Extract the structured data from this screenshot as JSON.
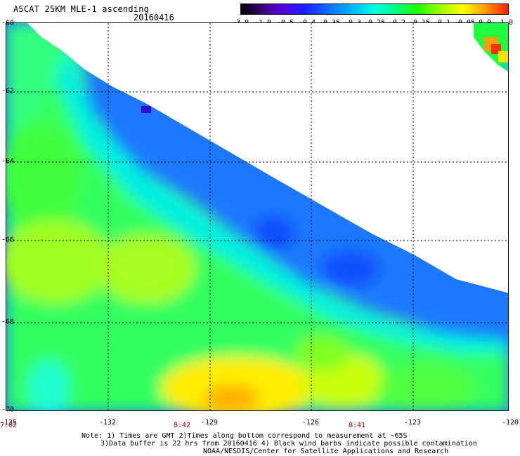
{
  "header": {
    "title": "ASCAT 25KM MLE-1 ascending",
    "date": "20160416"
  },
  "colorbar": {
    "labels": [
      "-3.0",
      "-1.0",
      "-0.5",
      "-0.4",
      "-0.35",
      "-0.3",
      "-0.25",
      "-0.2",
      "-0.15",
      "-0.1",
      "-0.05",
      "0.0",
      "1.0"
    ]
  },
  "axes": {
    "lat_labels": [
      "-60",
      "-62",
      "-64",
      "-66",
      "-68",
      "-70"
    ],
    "lon_labels": [
      "-135",
      "-132",
      "-129",
      "-126",
      "-123",
      "-120"
    ],
    "time_labels": [
      "7:02",
      "8:42",
      "8:41"
    ]
  },
  "notes": {
    "line1": "Note: 1) Times are GMT 2)Times along bottom correspond to measurement at ~65S",
    "line2": "3)Data buffer is 22 hrs from 20160416 4) Black wind barbs indicate possible contamination",
    "line3": "NOAA/NESDIS/Center for Satellite Applications and Research"
  },
  "colors": {
    "time_label": "#c00000",
    "grid": "#000000"
  }
}
